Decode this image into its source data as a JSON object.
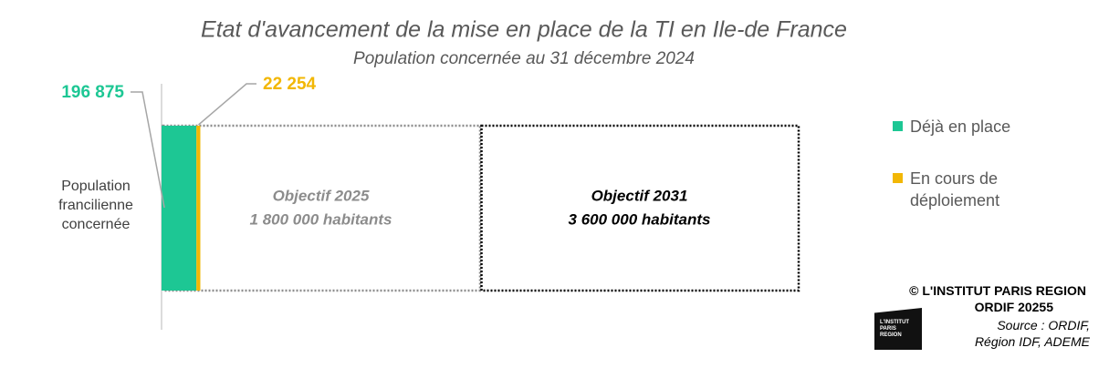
{
  "chart_data": {
    "type": "stacked-barh",
    "title": "Etat d'avancement de la mise en place de la TI en Ile-de France",
    "subtitle": "Population concernée au 31 décembre 2024",
    "categories": [
      "Population francilienne concernée"
    ],
    "series": [
      {
        "name": "Déjà en place",
        "color": "#1dc794",
        "values": [
          196875
        ],
        "value_labels": [
          "196 875"
        ]
      },
      {
        "name": "En cours de déploiement",
        "color": "#f2b705",
        "values": [
          22254
        ],
        "value_labels": [
          "22 254"
        ]
      }
    ],
    "objectives": [
      {
        "label": "Objectif 2025",
        "value": 1800000,
        "value_label": "1 800 000 habitants",
        "color": "#8c8c8c"
      },
      {
        "label": "Objectif 2031",
        "value": 3600000,
        "value_label": "3 600 000 habitants",
        "color": "#000000"
      }
    ],
    "xlim": [
      0,
      3600000
    ],
    "legend": "right"
  },
  "footer": {
    "copyright": "© L'INSTITUT PARIS REGION",
    "code": "ORDIF 20255",
    "source_1": "Source : ORDIF,",
    "source_2": "Région IDF, ADEME",
    "logo": [
      "L'INSTITUT",
      "PARIS",
      "REGION"
    ]
  }
}
